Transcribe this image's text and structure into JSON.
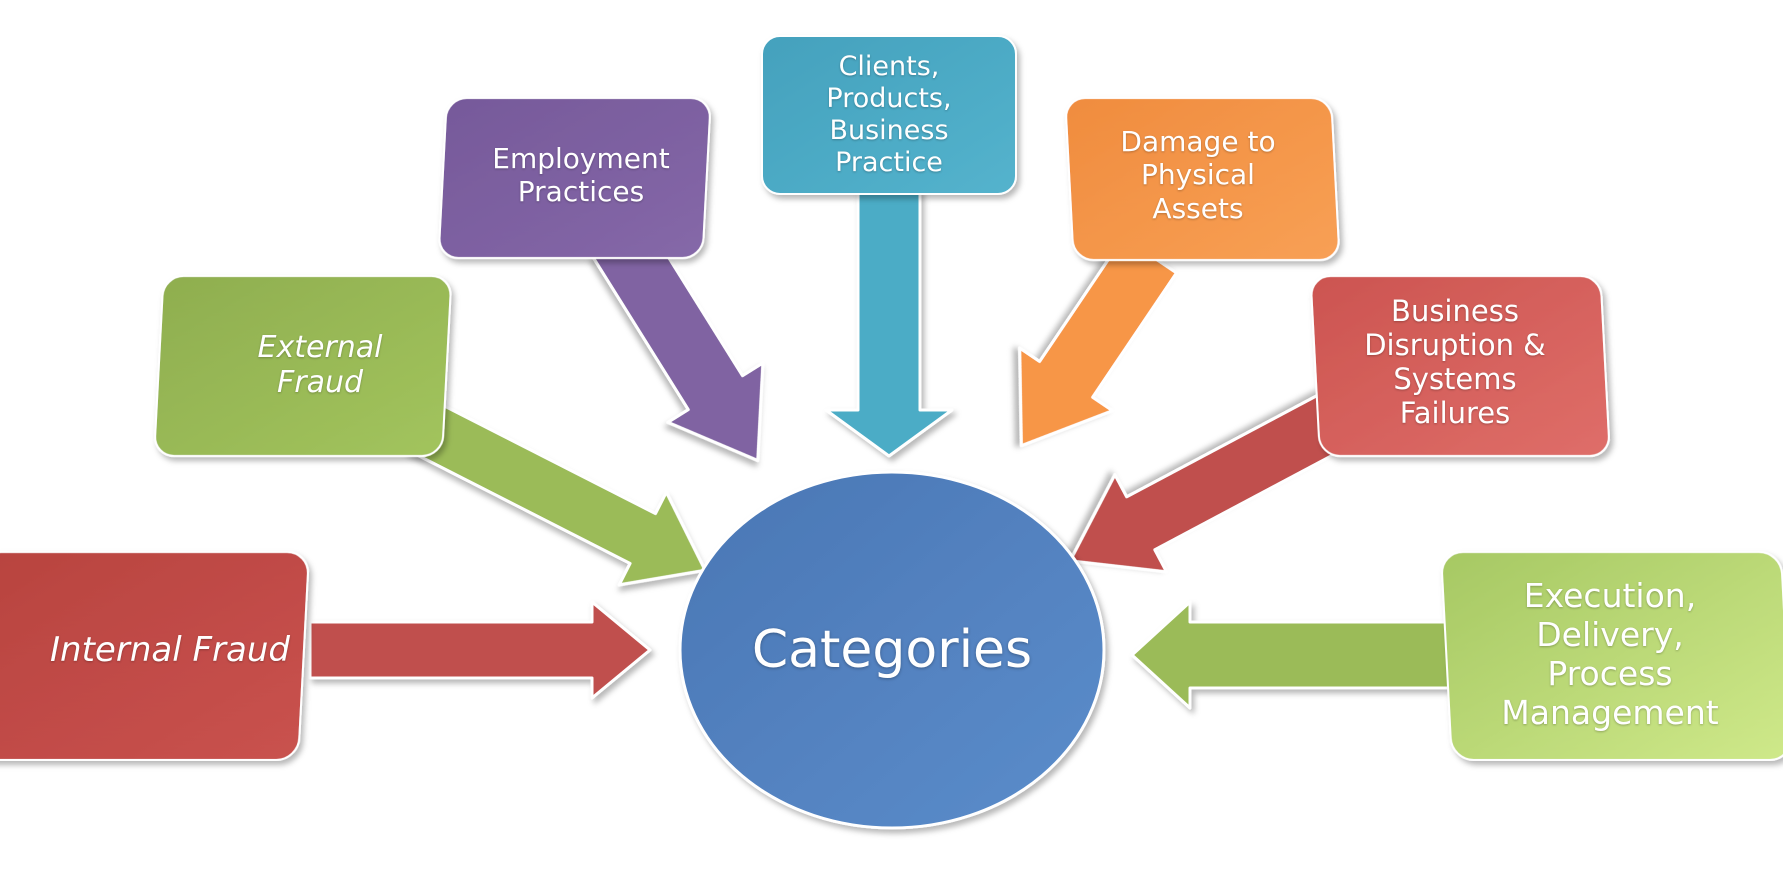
{
  "center": {
    "label": "Categories",
    "color": "#4f81bd"
  },
  "categories": [
    {
      "label": "Internal Fraud",
      "color": "#c0504d"
    },
    {
      "label": "External\nFraud",
      "color": "#9bbb59"
    },
    {
      "label": "Employment\nPractices",
      "color": "#8064a2"
    },
    {
      "label": "Clients,\nProducts,\nBusiness\nPractice",
      "color": "#4bacc6"
    },
    {
      "label": "Damage to\nPhysical\nAssets",
      "color": "#f79646"
    },
    {
      "label": "Business\nDisruption &\nSystems\nFailures",
      "color": "#d9625e"
    },
    {
      "label": "Execution,\nDelivery,\nProcess\nManagement",
      "color": "#b5d96c"
    }
  ]
}
